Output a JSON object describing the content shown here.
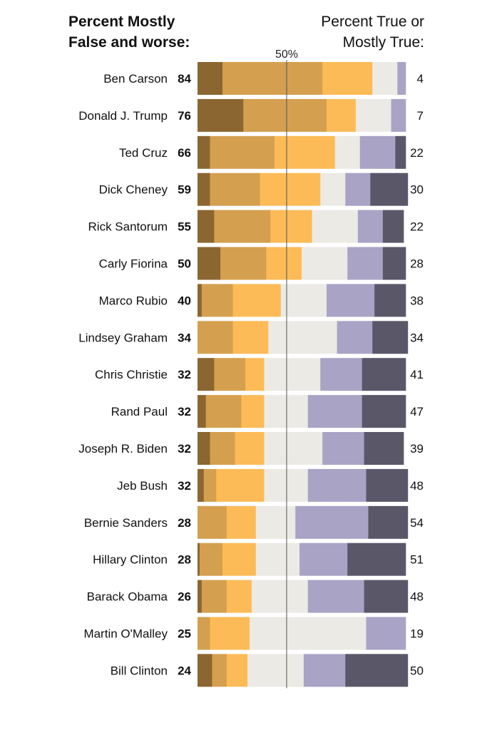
{
  "header": {
    "left": [
      "Percent Mostly",
      "False and worse:"
    ],
    "right": [
      "Percent True or",
      "Mostly True:"
    ]
  },
  "colors": {
    "pants_on_fire": "#8b6631",
    "false": "#d4a04f",
    "mostly_false": "#fcbb57",
    "half_true": "#ebeae5",
    "mostly_true": "#a9a3c5",
    "true": "#5a5769"
  },
  "chart_data": {
    "type": "bar",
    "stacked": true,
    "midline_label": "50%",
    "segment_order": [
      "pants_on_fire",
      "false",
      "mostly_false",
      "half_true",
      "mostly_true",
      "true"
    ],
    "categories": [
      "Ben Carson",
      "Donald J. Trump",
      "Ted Cruz",
      "Dick Cheney",
      "Rick Santorum",
      "Carly Fiorina",
      "Marco Rubio",
      "Lindsey Graham",
      "Chris Christie",
      "Rand Paul",
      "Joseph R. Biden",
      "Jeb Bush",
      "Bernie Sanders",
      "Hillary Clinton",
      "Barack Obama",
      "Martin O'Malley",
      "Bill Clinton"
    ],
    "false_and_worse": [
      84,
      76,
      66,
      59,
      55,
      50,
      40,
      34,
      32,
      32,
      32,
      32,
      28,
      28,
      26,
      25,
      24
    ],
    "true_or_mostly_true": [
      4,
      7,
      22,
      30,
      22,
      28,
      38,
      34,
      41,
      47,
      39,
      48,
      54,
      51,
      48,
      19,
      50
    ],
    "segments": [
      [
        12,
        48,
        24,
        12,
        4,
        0
      ],
      [
        22,
        40,
        14,
        17,
        7,
        0
      ],
      [
        6,
        31,
        29,
        12,
        17,
        5
      ],
      [
        6,
        24,
        29,
        12,
        12,
        18
      ],
      [
        8,
        27,
        20,
        22,
        12,
        10
      ],
      [
        11,
        22,
        17,
        22,
        17,
        11
      ],
      [
        2,
        15,
        23,
        22,
        23,
        15
      ],
      [
        0,
        17,
        17,
        33,
        17,
        17
      ],
      [
        8,
        15,
        9,
        27,
        20,
        21
      ],
      [
        4,
        17,
        11,
        21,
        26,
        21
      ],
      [
        6,
        12,
        14,
        28,
        20,
        19
      ],
      [
        3,
        6,
        23,
        21,
        28,
        20
      ],
      [
        0,
        14,
        14,
        19,
        35,
        19
      ],
      [
        1,
        11,
        16,
        21,
        23,
        28
      ],
      [
        2,
        12,
        12,
        27,
        27,
        21
      ],
      [
        0,
        6,
        19,
        56,
        19,
        0
      ],
      [
        7,
        7,
        10,
        27,
        20,
        30
      ]
    ]
  }
}
